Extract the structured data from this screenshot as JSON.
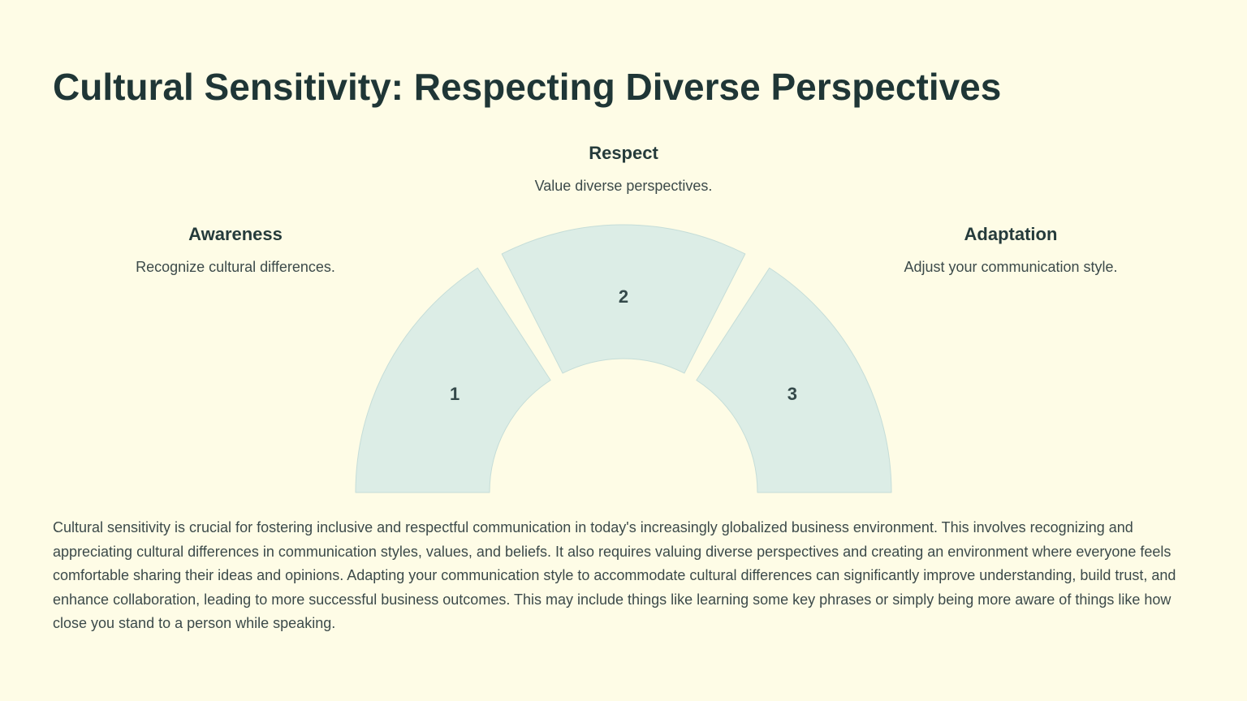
{
  "title": "Cultural Sensitivity: Respecting Diverse Perspectives",
  "items": [
    {
      "number": 1,
      "heading": "Awareness",
      "description": "Recognize cultural differences."
    },
    {
      "number": 2,
      "heading": "Respect",
      "description": "Value diverse perspectives."
    },
    {
      "number": 3,
      "heading": "Adaptation",
      "description": "Adjust your communication style."
    }
  ],
  "body": "Cultural sensitivity is crucial for fostering inclusive and respectful communication in today's increasingly globalized business environment. This involves recognizing and appreciating cultural differences in communication styles, values, and beliefs. It also requires valuing diverse perspectives and creating an environment where everyone feels comfortable sharing their ideas and opinions. Adapting your communication style to accommodate cultural differences can significantly improve understanding, build trust, and enhance collaboration, leading to more successful business outcomes. This may include things like learning some key phrases or simply being more aware of things like how close you stand to a person while speaking."
}
